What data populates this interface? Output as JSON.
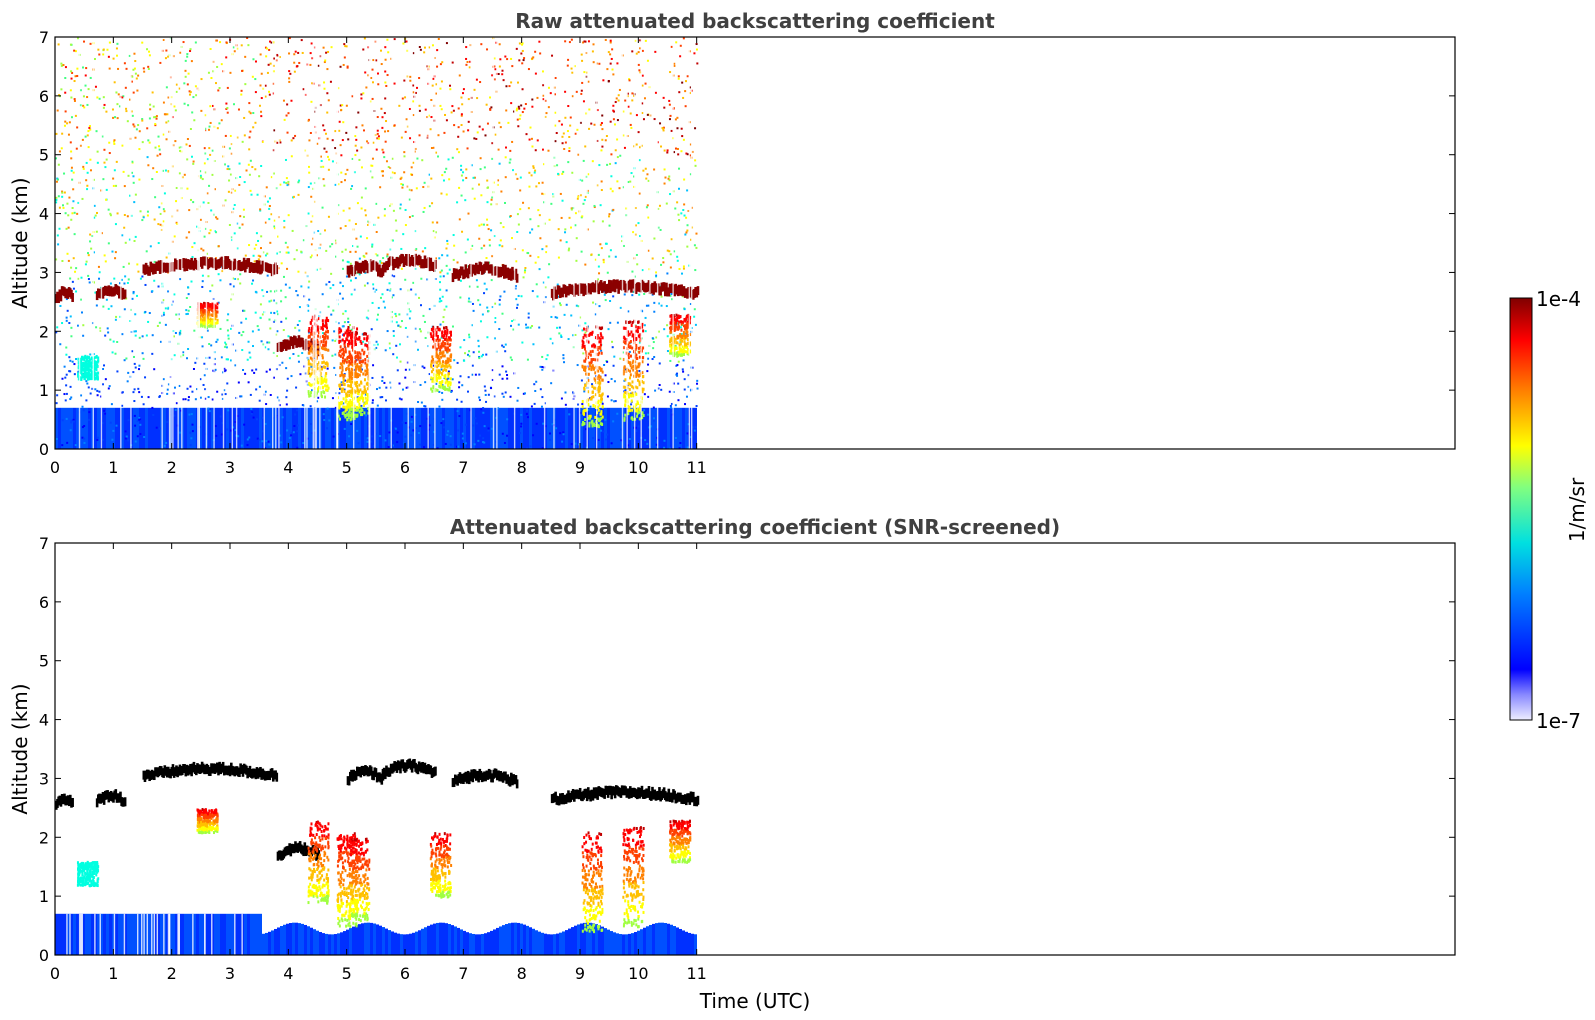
{
  "chart_data": [
    {
      "type": "heatmap",
      "title": "Raw attenuated backscattering coefficient",
      "xlabel": "",
      "ylabel": "Altitude (km)",
      "xlim": [
        0,
        24
      ],
      "ylim": [
        0,
        7
      ],
      "x_ticks": [
        "0",
        "1",
        "2",
        "3",
        "4",
        "5",
        "6",
        "7",
        "8",
        "9",
        "10",
        "11"
      ],
      "y_ticks": [
        "0",
        "1",
        "2",
        "3",
        "4",
        "5",
        "6",
        "7"
      ],
      "data_extent_x": [
        0,
        11
      ],
      "screened": false,
      "cloud_layers": [
        {
          "x": [
            0.0,
            0.3
          ],
          "y": 2.55
        },
        {
          "x": [
            0.7,
            1.2
          ],
          "y": 2.6
        },
        {
          "x": [
            1.5,
            3.8
          ],
          "y": 3.05
        },
        {
          "x": [
            3.8,
            4.5
          ],
          "y": 1.7
        },
        {
          "x": [
            5.0,
            5.6
          ],
          "y": 3.0
        },
        {
          "x": [
            5.6,
            6.5
          ],
          "y": 3.1
        },
        {
          "x": [
            6.8,
            7.9
          ],
          "y": 2.95
        },
        {
          "x": [
            8.5,
            11.0
          ],
          "y": 2.65
        }
      ],
      "boundary_layer_top_km": 0.7
    },
    {
      "type": "heatmap",
      "title": "Attenuated backscattering coefficient (SNR-screened)",
      "xlabel": "Time (UTC)",
      "ylabel": "Altitude (km)",
      "xlim": [
        0,
        24
      ],
      "ylim": [
        0,
        7
      ],
      "x_ticks": [
        "0",
        "1",
        "2",
        "3",
        "4",
        "5",
        "6",
        "7",
        "8",
        "9",
        "10",
        "11"
      ],
      "y_ticks": [
        "0",
        "1",
        "2",
        "3",
        "4",
        "5",
        "6",
        "7"
      ],
      "data_extent_x": [
        0,
        11
      ],
      "screened": true,
      "boundary_layer_top_km": 0.7
    }
  ],
  "colorbar": {
    "label": "1/m/sr",
    "max_label": "1e-4",
    "min_label": "1e-7",
    "colormap": "jet",
    "colors": [
      "#e8e8ff",
      "#0000ff",
      "#00a0ff",
      "#00ffd0",
      "#a0ff50",
      "#ffff00",
      "#ff8000",
      "#ff0000",
      "#800000"
    ]
  }
}
